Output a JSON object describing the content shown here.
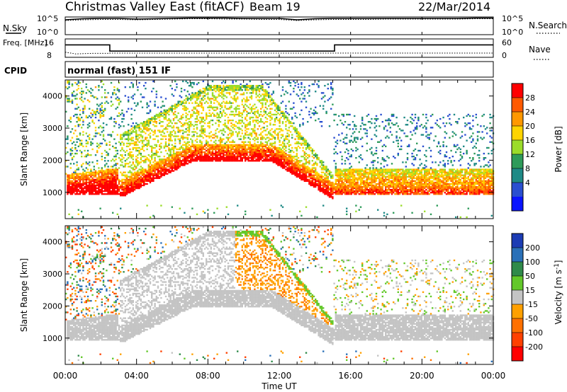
{
  "header": {
    "station": "Christmas Valley East (fitACF)",
    "beam": "Beam 19",
    "date": "22/Mar/2014"
  },
  "chart_data": [
    {
      "type": "line",
      "title": "",
      "ylabel_left": "N.Sky",
      "ylabel_right": "N.Search",
      "left_ticks": [
        "10^5",
        "10^0"
      ],
      "right_ticks": [
        "10^5",
        "10^0"
      ],
      "series": [
        {
          "name": "N.Sky",
          "x": [
            0,
            1,
            2,
            3,
            4,
            5,
            6,
            7,
            8,
            9,
            10,
            11,
            12,
            13,
            14,
            15,
            16,
            17,
            18,
            19,
            20,
            21,
            22,
            23,
            24
          ],
          "values": [
            4.2,
            4.5,
            4.6,
            4.6,
            4.4,
            4.5,
            4.6,
            4.7,
            4.7,
            4.7,
            4.6,
            4.6,
            4.6,
            4.2,
            4.5,
            4.6,
            4.6,
            4.6,
            4.6,
            4.6,
            4.6,
            4.6,
            4.6,
            4.7,
            4.7
          ]
        },
        {
          "name": "N.Search",
          "x": [
            0,
            1,
            2,
            3,
            4,
            5,
            6,
            7,
            8,
            9,
            10,
            11,
            12,
            13,
            14,
            15,
            16,
            17,
            18,
            19,
            20,
            21,
            22,
            23,
            24
          ],
          "values": [
            4.0,
            4.2,
            4.3,
            4.3,
            4.2,
            4.3,
            4.4,
            4.5,
            4.5,
            4.4,
            4.4,
            4.3,
            4.3,
            4.0,
            4.2,
            4.3,
            4.3,
            4.3,
            4.4,
            4.4,
            4.4,
            4.4,
            4.4,
            4.5,
            4.5
          ]
        }
      ]
    },
    {
      "type": "line",
      "ylabel_left": "Freq. [MHz]",
      "ylabel_right": "Nave",
      "left_ticks": [
        "16",
        "8"
      ],
      "right_ticks": [
        "60",
        "0"
      ],
      "series": [
        {
          "name": "Freq.",
          "x": [
            0,
            2.5,
            2.5,
            15.1,
            15.1,
            24
          ],
          "values": [
            14,
            14,
            10,
            10,
            14,
            14
          ]
        },
        {
          "name": "Nave",
          "x": [
            0,
            0.4,
            0.6,
            1.0,
            1.5,
            2.5,
            2.5,
            24
          ],
          "values": [
            18,
            14,
            12,
            13,
            14,
            14,
            15,
            15
          ]
        }
      ]
    },
    {
      "type": "table",
      "label": "CPID",
      "value": "normal (fast) 151 IF"
    },
    {
      "type": "heatmap",
      "ylabel": "Slant Range [km]",
      "yticks": [
        1000,
        2000,
        3000,
        4000
      ],
      "ylim": [
        180,
        4500
      ],
      "colorbar_label": "Power [dB]",
      "colorbar_ticks": [
        28,
        24,
        20,
        16,
        12,
        8,
        4
      ],
      "colorbar_colors": [
        "#ff0000",
        "#ff5a00",
        "#ff9800",
        "#ffd400",
        "#9bdc2a",
        "#2e9b5a",
        "#1f8a86",
        "#2a4fd0",
        "#0a14ff"
      ],
      "colorbar_range": [
        0,
        32
      ]
    },
    {
      "type": "heatmap",
      "ylabel": "Slant Range [km]",
      "yticks": [
        1000,
        2000,
        3000,
        4000
      ],
      "ylim": [
        180,
        4500
      ],
      "colorbar_label": "Velocity [m s^-1]",
      "colorbar_ticks": [
        "200",
        "100",
        "50",
        "15",
        "-15",
        "-50",
        "-100",
        "-200"
      ],
      "colorbar_colors": [
        "#1c3cb4",
        "#2a70b8",
        "#2f8a4a",
        "#63c82a",
        "#c4c4c4",
        "#ffa000",
        "#ff7000",
        "#ff4000",
        "#ff0000"
      ],
      "colorbar_range": [
        -250,
        250
      ]
    }
  ],
  "xaxis": {
    "label": "Time UT",
    "ticks": [
      "00:00",
      "04:00",
      "08:00",
      "12:00",
      "16:00",
      "20:00",
      "00:00"
    ]
  }
}
